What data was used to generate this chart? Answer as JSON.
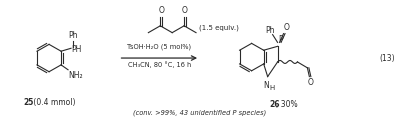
{
  "bg_color": "#ffffff",
  "fig_width": 4.0,
  "fig_height": 1.2,
  "dpi": 100,
  "equation_number": "(13)",
  "reactant_label_bold": "25",
  "reactant_label_normal": " (0.4 mmol)",
  "reagent_line1": "(1.5 equiv.)",
  "reagent_line2": "TsOH·H₂O (5 mol%)",
  "reagent_line3": "CH₃CN, 80 °C, 16 h",
  "product_label_bold": "26",
  "product_label_normal": ", 30%",
  "product_note": "(conv. >99%, 43 unidentified P species)",
  "text_color": "#2a2a2a"
}
